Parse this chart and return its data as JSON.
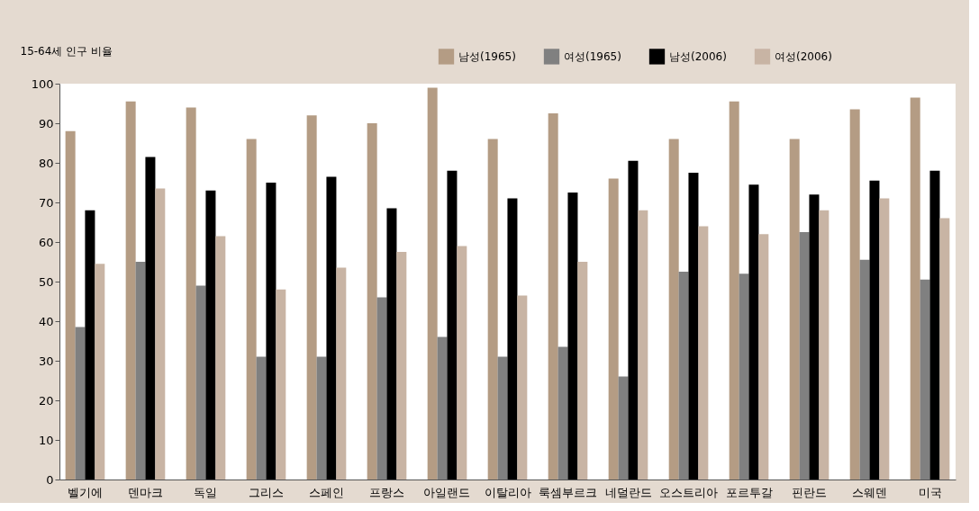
{
  "chart_data": {
    "type": "bar",
    "ylabel": "15-64세 인구 비율",
    "categories": [
      "벨기에",
      "덴마크",
      "독일",
      "그리스",
      "스페인",
      "프랑스",
      "아일랜드",
      "이탈리아",
      "룩셈부르크",
      "네덜란드",
      "오스트리아",
      "포르투갈",
      "핀란드",
      "스웨덴",
      "미국"
    ],
    "series": [
      {
        "name": "남성(1965)",
        "color": "#b49c84",
        "values": [
          88,
          95.5,
          94,
          86,
          92,
          90,
          99,
          86,
          92.5,
          76,
          86,
          95.5,
          86,
          93.5,
          96.5
        ]
      },
      {
        "name": "여성(1965)",
        "color": "#808080",
        "values": [
          38.5,
          55,
          49,
          31,
          31,
          46,
          36,
          31,
          33.5,
          26,
          52.5,
          52,
          62.5,
          55.5,
          50.5
        ]
      },
      {
        "name": "남성(2006)",
        "color": "#000000",
        "values": [
          68,
          81.5,
          73,
          75,
          76.5,
          68.5,
          78,
          71,
          72.5,
          80.5,
          77.5,
          74.5,
          72,
          75.5,
          78
        ]
      },
      {
        "name": "여성(2006)",
        "color": "#c8b4a4",
        "values": [
          54.5,
          73.5,
          61.5,
          48,
          53.5,
          57.5,
          59,
          46.5,
          55,
          68,
          64,
          62,
          68,
          71,
          66
        ]
      }
    ],
    "ylim": [
      0,
      100
    ],
    "yticks": [
      0,
      10,
      20,
      30,
      40,
      50,
      60,
      70,
      80,
      90,
      100
    ],
    "grid": false,
    "legend": "top right"
  }
}
